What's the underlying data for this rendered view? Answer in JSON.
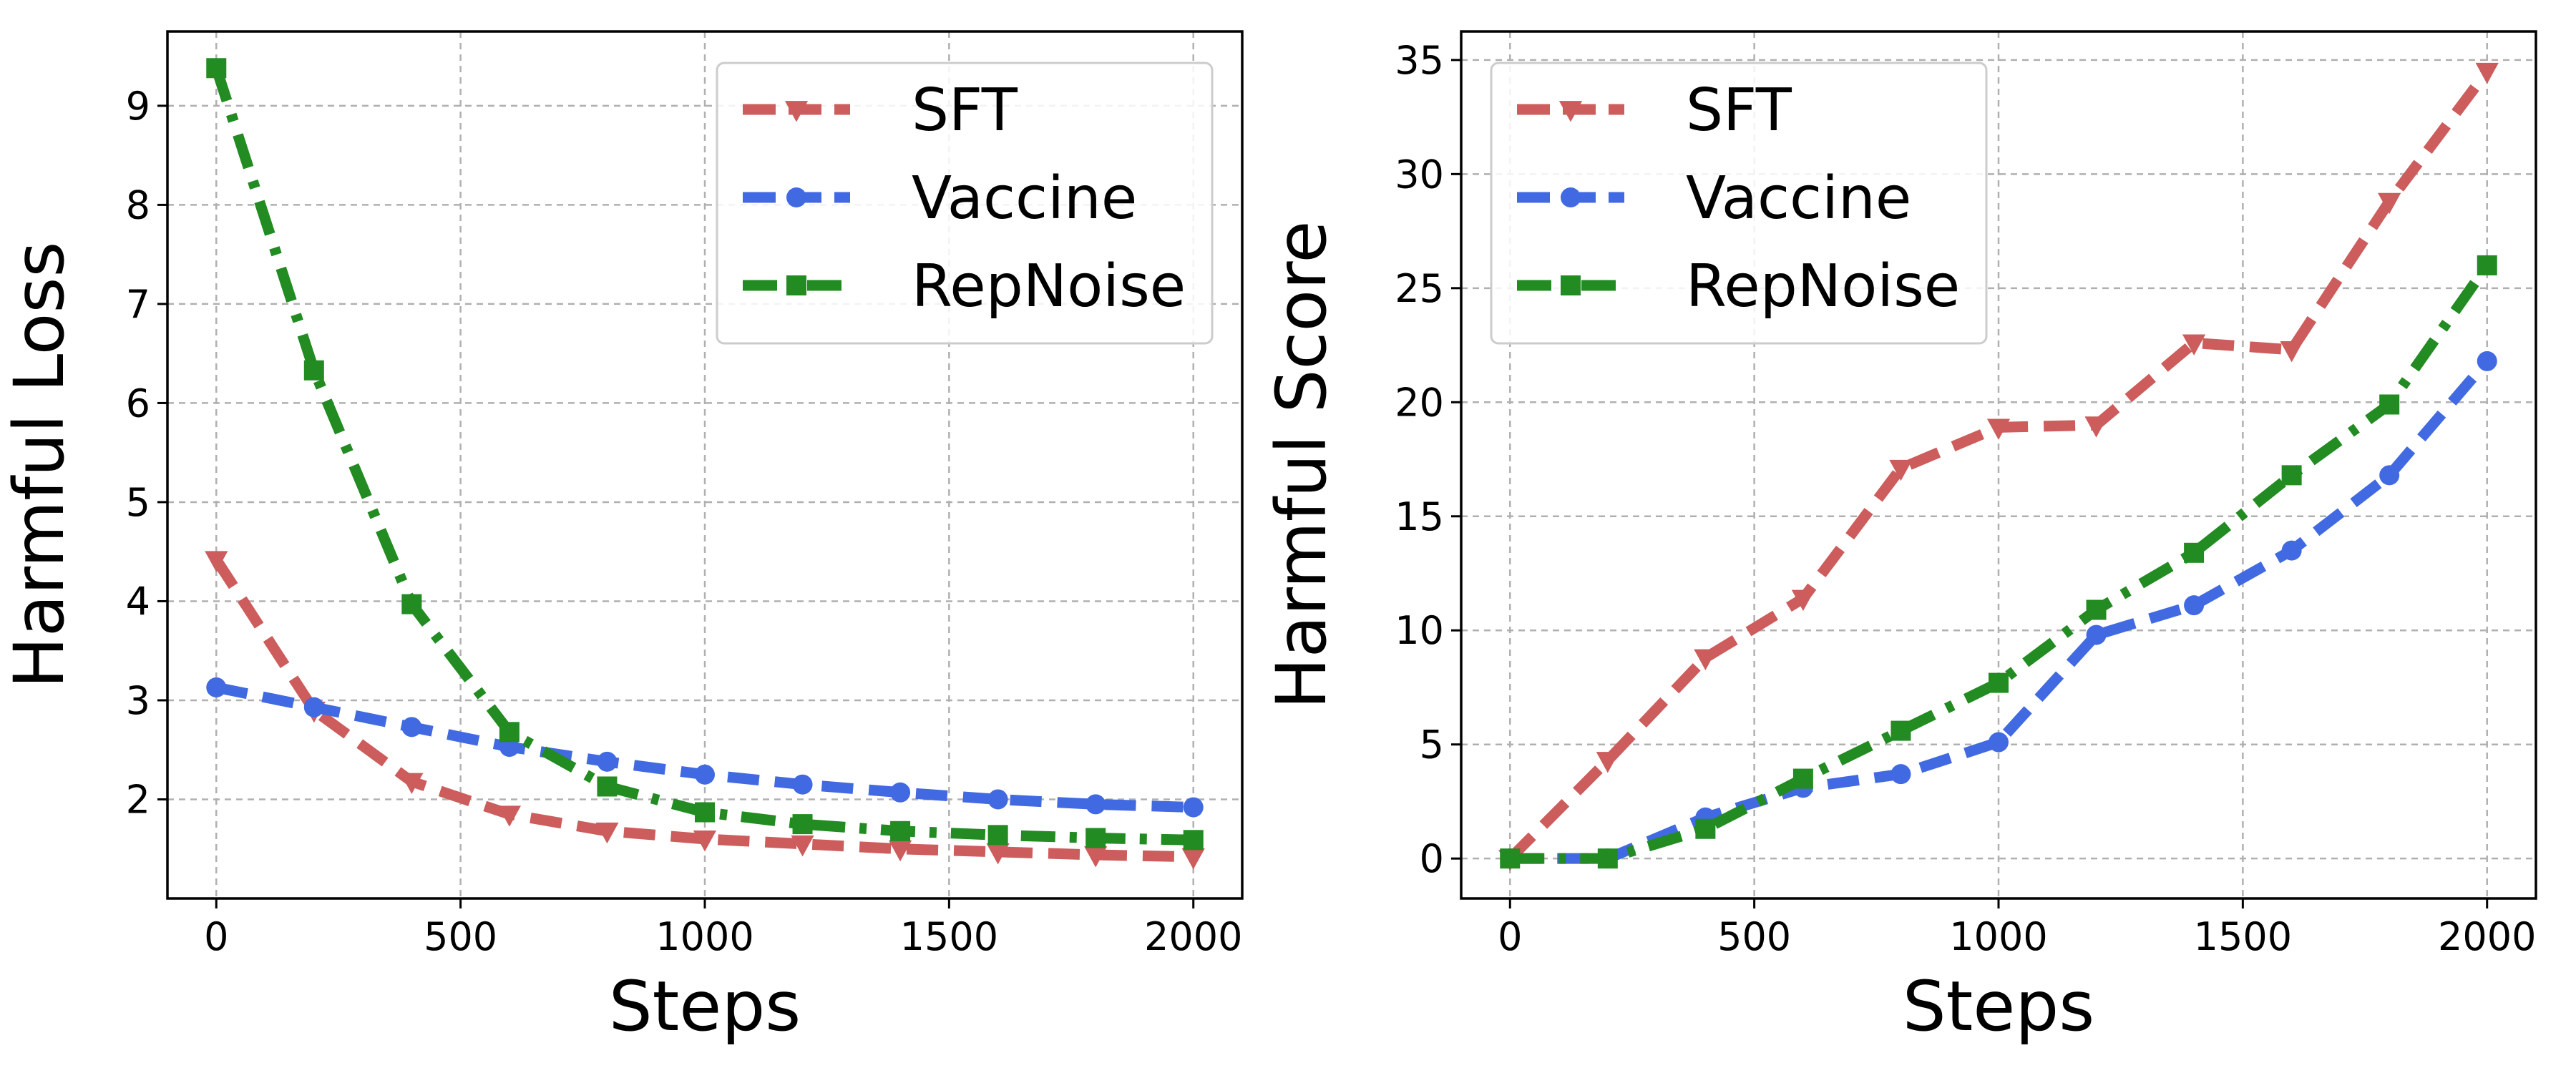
{
  "chart_data": [
    {
      "type": "line",
      "title": "",
      "xlabel": "Steps",
      "ylabel": "Harmful Loss",
      "xlim": [
        -100,
        2100
      ],
      "ylim": [
        1.0,
        9.75
      ],
      "xticks": [
        0,
        500,
        1000,
        1500,
        2000
      ],
      "yticks": [
        2,
        3,
        4,
        5,
        6,
        7,
        8,
        9
      ],
      "x": [
        0,
        200,
        400,
        600,
        800,
        1000,
        1200,
        1400,
        1600,
        1800,
        2000
      ],
      "grid": true,
      "legend_position": "top-right",
      "series": [
        {
          "name": "SFT",
          "color": "#cd5c5c",
          "marker": "triangle-down",
          "linestyle": "dashed",
          "values": [
            4.42,
            2.9,
            2.18,
            1.85,
            1.68,
            1.6,
            1.55,
            1.5,
            1.47,
            1.44,
            1.42
          ]
        },
        {
          "name": "Vaccine",
          "color": "#4169e1",
          "marker": "circle",
          "linestyle": "dashed",
          "values": [
            3.13,
            2.93,
            2.73,
            2.53,
            2.38,
            2.25,
            2.15,
            2.07,
            2.0,
            1.95,
            1.92
          ]
        },
        {
          "name": "RepNoise",
          "color": "#228b22",
          "marker": "square",
          "linestyle": "dashdot",
          "values": [
            9.38,
            6.33,
            3.97,
            2.68,
            2.13,
            1.87,
            1.75,
            1.68,
            1.64,
            1.61,
            1.59
          ]
        }
      ]
    },
    {
      "type": "line",
      "title": "",
      "xlabel": "Steps",
      "ylabel": "Harmful Score",
      "xlim": [
        -100,
        2100
      ],
      "ylim": [
        -1.75,
        36.25
      ],
      "xticks": [
        0,
        500,
        1000,
        1500,
        2000
      ],
      "yticks": [
        0,
        5,
        10,
        15,
        20,
        25,
        30,
        35
      ],
      "x": [
        0,
        200,
        400,
        600,
        800,
        1000,
        1200,
        1400,
        1600,
        1800,
        2000
      ],
      "grid": true,
      "legend_position": "top-left",
      "series": [
        {
          "name": "SFT",
          "color": "#cd5c5c",
          "marker": "triangle-down",
          "linestyle": "dashed",
          "values": [
            0,
            4.3,
            8.8,
            11.4,
            17.1,
            18.9,
            19.0,
            22.6,
            22.3,
            28.8,
            34.5
          ]
        },
        {
          "name": "Vaccine",
          "color": "#4169e1",
          "marker": "circle",
          "linestyle": "dashed",
          "values": [
            0,
            0,
            1.8,
            3.1,
            3.7,
            5.1,
            9.8,
            11.1,
            13.5,
            16.8,
            21.8
          ]
        },
        {
          "name": "RepNoise",
          "color": "#228b22",
          "marker": "square",
          "linestyle": "dashdot",
          "values": [
            0,
            0,
            1.3,
            3.5,
            5.6,
            7.7,
            10.9,
            13.4,
            16.8,
            19.9,
            26.0
          ]
        }
      ]
    }
  ]
}
